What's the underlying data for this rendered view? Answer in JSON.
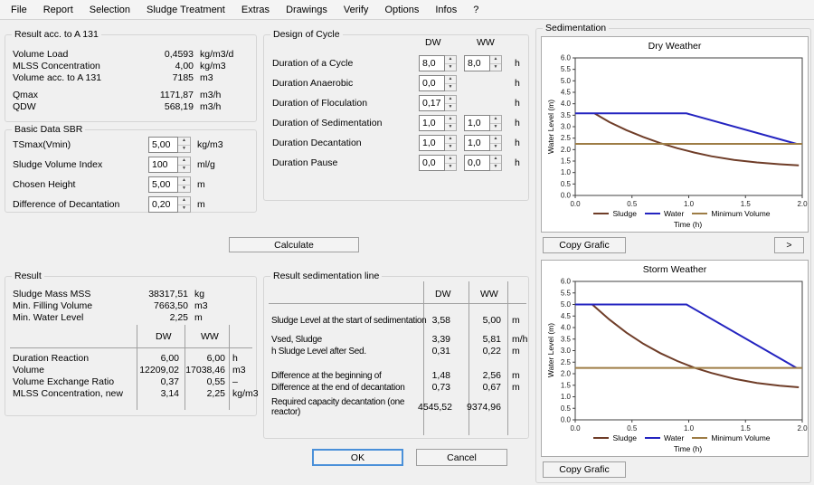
{
  "menu": {
    "items": [
      "File",
      "Report",
      "Selection",
      "Sludge Treatment",
      "Extras",
      "Drawings",
      "Verify",
      "Options",
      "Infos",
      "?"
    ]
  },
  "result_a131": {
    "title": "Result acc. to A 131",
    "rows": [
      {
        "label": "Volume Load",
        "value": "0,4593",
        "unit": "kg/m3/d"
      },
      {
        "label": "MLSS Concentration",
        "value": "4,00",
        "unit": "kg/m3"
      },
      {
        "label": "Volume acc. to A 131",
        "value": "7185",
        "unit": "m3"
      },
      {
        "label": "Qmax",
        "value": "1171,87",
        "unit": "m3/h"
      },
      {
        "label": "QDW",
        "value": "568,19",
        "unit": "m3/h"
      }
    ]
  },
  "basic_data": {
    "title": "Basic Data SBR",
    "rows": [
      {
        "label": "TSmax(Vmin)",
        "value": "5,00",
        "unit": "kg/m3"
      },
      {
        "label": "Sludge Volume Index",
        "value": "100",
        "unit": "ml/g"
      },
      {
        "label": "Chosen Height",
        "value": "5,00",
        "unit": "m"
      },
      {
        "label": "Difference of Decantation",
        "value": "0,20",
        "unit": "m"
      }
    ]
  },
  "design_cycle": {
    "title": "Design of Cycle",
    "col_dw": "DW",
    "col_ww": "WW",
    "rows": [
      {
        "label": "Duration of a Cycle",
        "dw": "8,0",
        "ww": "8,0",
        "unit": "h"
      },
      {
        "label": "Duration Anaerobic",
        "dw": "0,0",
        "ww": null,
        "unit": "h"
      },
      {
        "label": "Duration of Floculation",
        "dw": "0,17",
        "ww": null,
        "unit": "h"
      },
      {
        "label": "Duration of Sedimentation",
        "dw": "1,0",
        "ww": "1,0",
        "unit": "h"
      },
      {
        "label": "Duration Decantation",
        "dw": "1,0",
        "ww": "1,0",
        "unit": "h"
      },
      {
        "label": "Duration Pause",
        "dw": "0,0",
        "ww": "0,0",
        "unit": "h"
      }
    ]
  },
  "calculate_label": "Calculate",
  "result": {
    "title": "Result",
    "summary": [
      {
        "label": "Sludge Mass MSS",
        "value": "38317,51",
        "unit": "kg"
      },
      {
        "label": "Min. Filling Volume",
        "value": "7663,50",
        "unit": "m3"
      },
      {
        "label": "Min. Water Level",
        "value": "2,25",
        "unit": "m"
      }
    ],
    "col_dw": "DW",
    "col_ww": "WW",
    "table": [
      {
        "label": "Duration Reaction",
        "dw": "6,00",
        "ww": "6,00",
        "unit": "h"
      },
      {
        "label": "Volume",
        "dw": "12209,02",
        "ww": "17038,46",
        "unit": "m3"
      },
      {
        "label": "Volume Exchange Ratio",
        "dw": "0,37",
        "ww": "0,55",
        "unit": "–"
      },
      {
        "label": "MLSS Concentration, new",
        "dw": "3,14",
        "ww": "2,25",
        "unit": "kg/m3"
      }
    ]
  },
  "result_sed": {
    "title": "Result sedimentation line",
    "col_dw": "DW",
    "col_ww": "WW",
    "rows": [
      {
        "label": "Sludge Level at the start of sedimentation",
        "dw": "3,58",
        "ww": "5,00",
        "unit": "m"
      },
      {
        "label": "Vsed, Sludge",
        "dw": "3,39",
        "ww": "5,81",
        "unit": "m/h"
      },
      {
        "label": "h Sludge Level after Sed.",
        "dw": "0,31",
        "ww": "0,22",
        "unit": "m"
      },
      {
        "label": "Difference at the beginning of",
        "dw": "1,48",
        "ww": "2,56",
        "unit": "m"
      },
      {
        "label": "Difference at the end of decantation",
        "dw": "0,73",
        "ww": "0,67",
        "unit": "m"
      },
      {
        "label": "Required capacity decantation (one reactor)",
        "dw": "4545,52",
        "ww": "9374,96",
        "unit": ""
      }
    ]
  },
  "ok_label": "OK",
  "cancel_label": "Cancel",
  "sedimentation": {
    "title": "Sedimentation",
    "copy_grafic_top": "Copy Grafic",
    "copy_grafic_bottom": "Copy Grafic",
    "next_label": ">"
  },
  "colors": {
    "sludge": "#6f3d28",
    "water": "#2424c0",
    "minimum": "#9d7c45",
    "accent_default_button": "#4a90d9"
  },
  "chart_data": [
    {
      "type": "line",
      "title": "Dry Weather",
      "xlabel": "Time (h)",
      "ylabel": "Water Level (m)",
      "xlim": [
        0,
        2
      ],
      "ylim": [
        0,
        6
      ],
      "xticks": [
        0,
        0.5,
        1,
        1.5,
        2
      ],
      "ytick_step": 0.5,
      "grid": false,
      "legend_position": "bottom",
      "series": [
        {
          "name": "Sludge",
          "color": "#6f3d28",
          "points": [
            [
              0.17,
              3.58
            ],
            [
              0.3,
              3.2
            ],
            [
              0.45,
              2.85
            ],
            [
              0.6,
              2.55
            ],
            [
              0.75,
              2.28
            ],
            [
              0.9,
              2.06
            ],
            [
              1.05,
              1.87
            ],
            [
              1.2,
              1.71
            ],
            [
              1.4,
              1.55
            ],
            [
              1.6,
              1.44
            ],
            [
              1.8,
              1.36
            ],
            [
              1.97,
              1.31
            ]
          ]
        },
        {
          "name": "Water",
          "color": "#2424c0",
          "points": [
            [
              0,
              3.58
            ],
            [
              0.98,
              3.58
            ],
            [
              1.95,
              2.25
            ]
          ]
        },
        {
          "name": "Minimum Volume",
          "color": "#9d7c45",
          "points": [
            [
              0,
              2.25
            ],
            [
              2,
              2.25
            ]
          ]
        }
      ]
    },
    {
      "type": "line",
      "title": "Storm Weather",
      "xlabel": "Time (h)",
      "ylabel": "Water Level (m)",
      "xlim": [
        0,
        2
      ],
      "ylim": [
        0,
        6
      ],
      "xticks": [
        0,
        0.5,
        1,
        1.5,
        2
      ],
      "ytick_step": 0.5,
      "grid": false,
      "legend_position": "bottom",
      "series": [
        {
          "name": "Sludge",
          "color": "#6f3d28",
          "points": [
            [
              0.15,
              5.0
            ],
            [
              0.3,
              4.35
            ],
            [
              0.45,
              3.78
            ],
            [
              0.6,
              3.3
            ],
            [
              0.75,
              2.89
            ],
            [
              0.9,
              2.55
            ],
            [
              1.05,
              2.26
            ],
            [
              1.2,
              2.03
            ],
            [
              1.4,
              1.78
            ],
            [
              1.6,
              1.6
            ],
            [
              1.8,
              1.48
            ],
            [
              1.97,
              1.41
            ]
          ]
        },
        {
          "name": "Water",
          "color": "#2424c0",
          "points": [
            [
              0,
              5.0
            ],
            [
              0.98,
              5.0
            ],
            [
              1.95,
              2.25
            ]
          ]
        },
        {
          "name": "Minimum Volume",
          "color": "#9d7c45",
          "points": [
            [
              0,
              2.25
            ],
            [
              2,
              2.25
            ]
          ]
        }
      ]
    }
  ]
}
